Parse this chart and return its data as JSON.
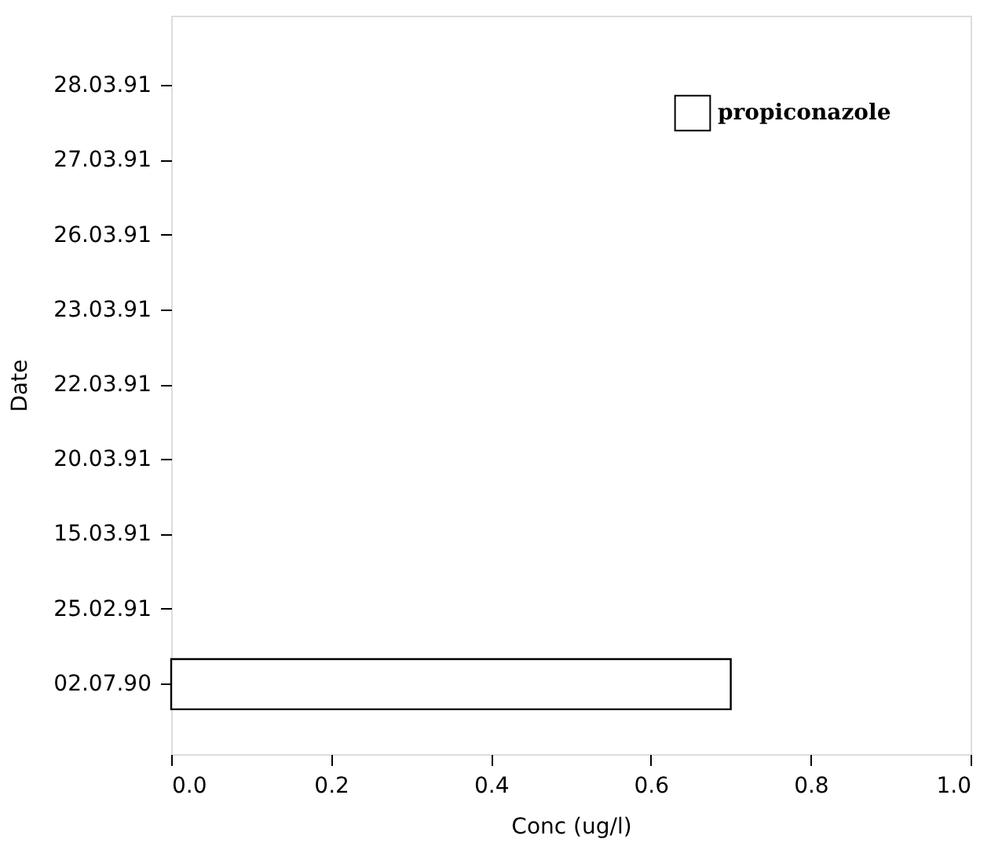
{
  "chart_data": {
    "type": "bar",
    "orientation": "horizontal",
    "xlabel": "Conc (ug/l)",
    "ylabel": "Date",
    "categories": [
      "28.03.91",
      "27.03.91",
      "26.03.91",
      "23.03.91",
      "22.03.91",
      "20.03.91",
      "15.03.91",
      "25.02.91",
      "02.07.90"
    ],
    "series": [
      {
        "name": "propiconazole",
        "color": "#ffffff",
        "values": [
          null,
          null,
          null,
          null,
          null,
          null,
          null,
          null,
          0.7
        ]
      }
    ],
    "xlim": [
      0,
      1
    ],
    "xticks": [
      {
        "value": 0,
        "label": "0.0"
      },
      {
        "value": 0.2,
        "label": "0.2"
      },
      {
        "value": 0.4,
        "label": "0.4"
      },
      {
        "value": 0.6,
        "label": "0.6"
      },
      {
        "value": 0.8,
        "label": "0.8"
      },
      {
        "value": 1,
        "label": "1.0"
      }
    ],
    "grid": false,
    "legend": "top right"
  }
}
